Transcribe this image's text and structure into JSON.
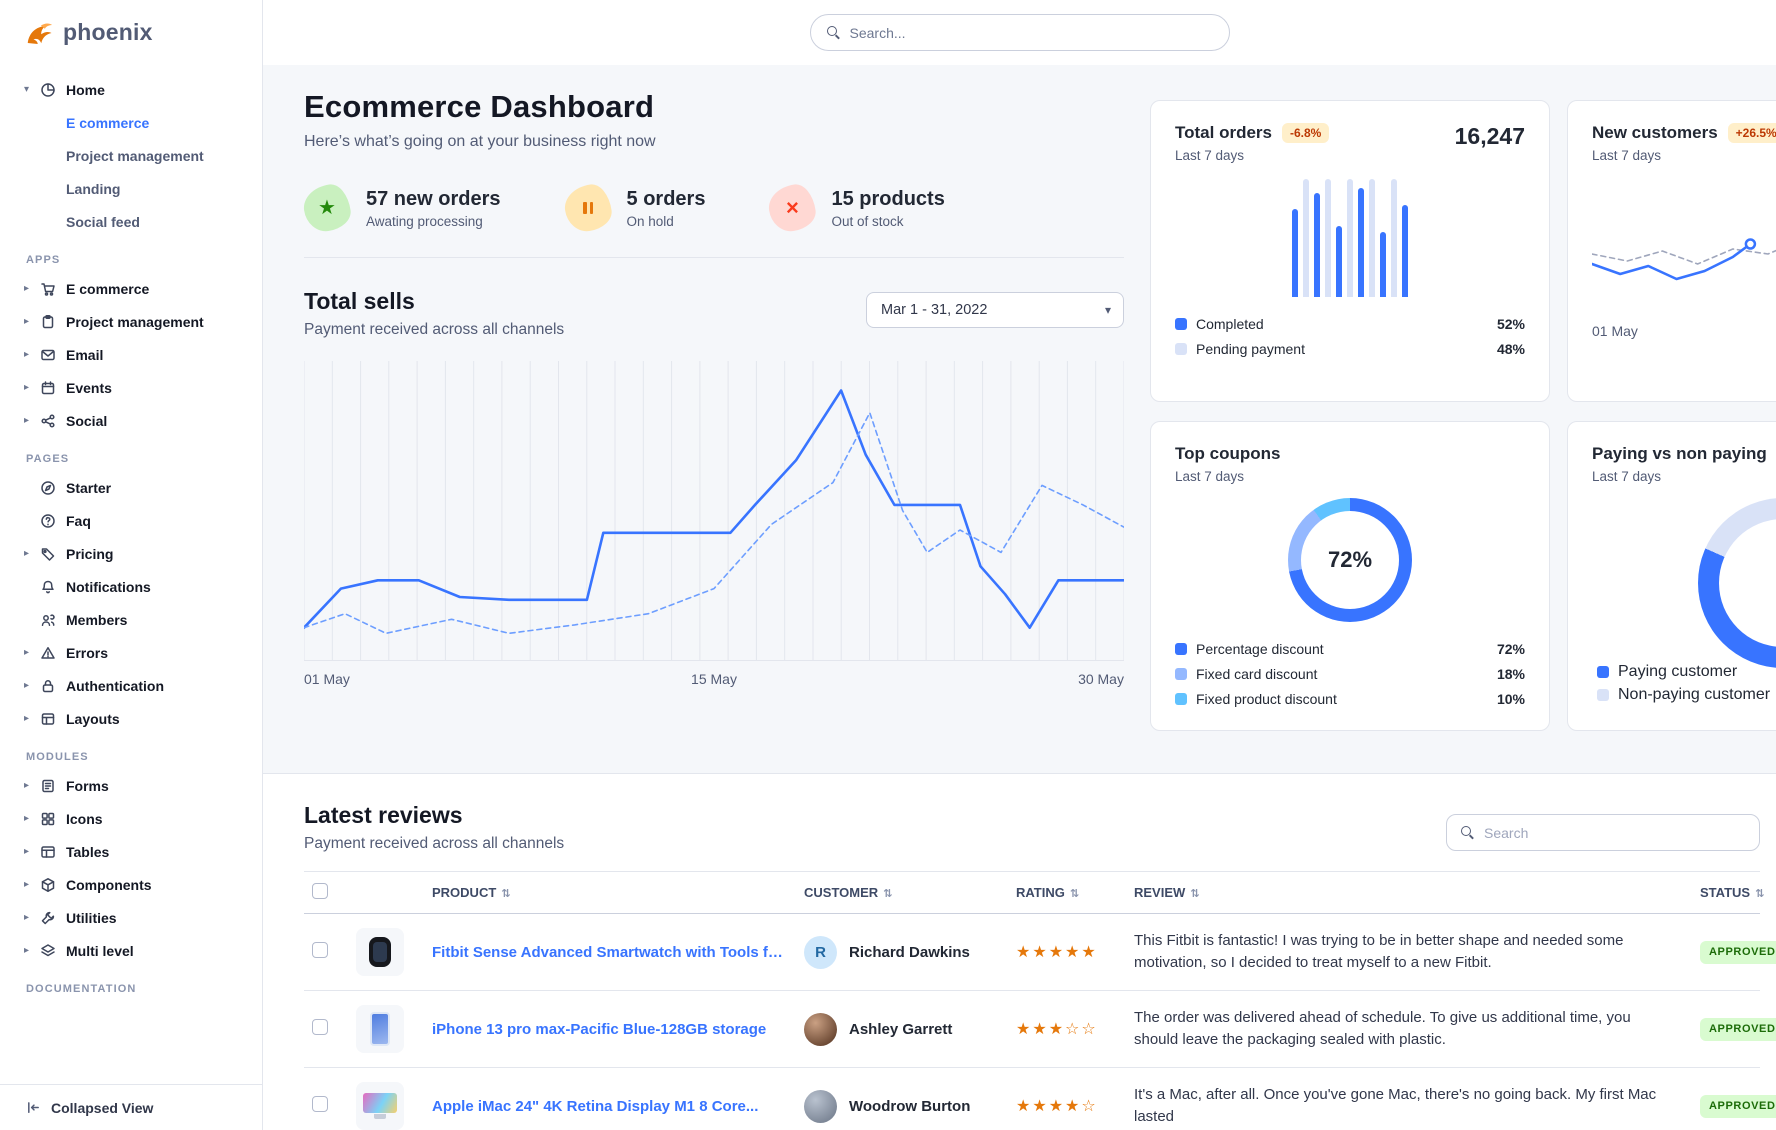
{
  "brand": {
    "name": "phoenix"
  },
  "header": {
    "search_placeholder": "Search..."
  },
  "sidebar": {
    "home": {
      "label": "Home"
    },
    "home_children": [
      {
        "label": "E commerce"
      },
      {
        "label": "Project management"
      },
      {
        "label": "Landing"
      },
      {
        "label": "Social feed"
      }
    ],
    "sections": [
      {
        "label": "APPS",
        "items": [
          {
            "label": "E commerce"
          },
          {
            "label": "Project management"
          },
          {
            "label": "Email"
          },
          {
            "label": "Events"
          },
          {
            "label": "Social"
          }
        ]
      },
      {
        "label": "PAGES",
        "items": [
          {
            "label": "Starter"
          },
          {
            "label": "Faq"
          },
          {
            "label": "Pricing"
          },
          {
            "label": "Notifications"
          },
          {
            "label": "Members"
          },
          {
            "label": "Errors"
          },
          {
            "label": "Authentication"
          },
          {
            "label": "Layouts"
          }
        ]
      },
      {
        "label": "MODULES",
        "items": [
          {
            "label": "Forms"
          },
          {
            "label": "Icons"
          },
          {
            "label": "Tables"
          },
          {
            "label": "Components"
          },
          {
            "label": "Utilities"
          },
          {
            "label": "Multi level"
          }
        ]
      },
      {
        "label": "DOCUMENTATION",
        "items": []
      }
    ],
    "collapsed_view": "Collapsed View"
  },
  "dashboard": {
    "title": "Ecommerce Dashboard",
    "subtitle": "Here’s what’s going on at your business right now",
    "stats": [
      {
        "value": "57 new orders",
        "caption": "Awating processing"
      },
      {
        "value": "5 orders",
        "caption": "On hold"
      },
      {
        "value": "15 products",
        "caption": "Out of stock"
      }
    ],
    "total_sells": {
      "title": "Total sells",
      "subtitle": "Payment received across all channels",
      "date_range": "Mar 1 - 31, 2022"
    }
  },
  "cards": {
    "total_orders": {
      "title": "Total orders",
      "badge": "-6.8%",
      "period": "Last 7 days",
      "value": "16,247"
    },
    "new_customers": {
      "title": "New customers",
      "badge": "+26.5%",
      "period": "Last 7 days"
    },
    "top_coupons": {
      "title": "Top coupons",
      "period": "Last 7 days"
    },
    "paying": {
      "title": "Paying vs non paying",
      "period": "Last 7 days"
    }
  },
  "reviews": {
    "title": "Latest reviews",
    "subtitle": "Payment received across all channels",
    "search_placeholder": "Search",
    "columns": [
      "PRODUCT",
      "CUSTOMER",
      "RATING",
      "REVIEW",
      "STATUS"
    ],
    "rows": [
      {
        "product": "Fitbit Sense Advanced Smartwatch with Tools fo...",
        "customer": "Richard Dawkins",
        "avatar_initial": "R",
        "rating": 5,
        "review": "This Fitbit is fantastic! I was trying to be in better shape and needed some motivation, so I decided to treat myself to a new Fitbit.",
        "status": "APPROVED"
      },
      {
        "product": "iPhone 13 pro max-Pacific Blue-128GB storage",
        "customer": "Ashley Garrett",
        "rating": 3,
        "review": "The order was delivered ahead of schedule. To give us additional time, you should leave the packaging sealed with plastic.",
        "status": "APPROVED"
      },
      {
        "product": "Apple iMac 24\" 4K Retina Display M1 8 Core...",
        "customer": "Woodrow Burton",
        "rating": 4,
        "review": "It's a Mac, after all. Once you've gone Mac, there's no going back. My first Mac lasted",
        "status": "APPROVED"
      }
    ]
  },
  "chart_data": [
    {
      "id": "total_sells",
      "type": "line",
      "title": "Total sells",
      "x_labels": [
        "01 May",
        "15 May",
        "30 May"
      ],
      "ylim": [
        0,
        100
      ],
      "grid": "vertical",
      "series": [
        {
          "name": "current",
          "style": "solid",
          "color": "#3874ff",
          "points": [
            [
              0,
              8
            ],
            [
              0.045,
              22
            ],
            [
              0.09,
              25
            ],
            [
              0.14,
              25
            ],
            [
              0.19,
              19
            ],
            [
              0.25,
              18
            ],
            [
              0.345,
              18
            ],
            [
              0.365,
              42
            ],
            [
              0.45,
              42
            ],
            [
              0.52,
              42
            ],
            [
              0.55,
              52
            ],
            [
              0.6,
              68
            ],
            [
              0.655,
              93
            ],
            [
              0.685,
              70
            ],
            [
              0.72,
              52
            ],
            [
              0.8,
              52
            ],
            [
              0.825,
              30
            ],
            [
              0.855,
              20
            ],
            [
              0.885,
              8
            ],
            [
              0.92,
              25
            ],
            [
              1,
              25
            ]
          ]
        },
        {
          "name": "previous",
          "style": "dashed",
          "color": "#6d9eff",
          "points": [
            [
              0,
              8
            ],
            [
              0.05,
              13
            ],
            [
              0.1,
              6
            ],
            [
              0.18,
              11
            ],
            [
              0.25,
              6
            ],
            [
              0.33,
              9
            ],
            [
              0.42,
              13
            ],
            [
              0.5,
              22
            ],
            [
              0.57,
              45
            ],
            [
              0.645,
              60
            ],
            [
              0.69,
              85
            ],
            [
              0.73,
              50
            ],
            [
              0.76,
              35
            ],
            [
              0.8,
              43
            ],
            [
              0.85,
              35
            ],
            [
              0.9,
              59
            ],
            [
              0.95,
              52
            ],
            [
              1,
              44
            ]
          ]
        }
      ]
    },
    {
      "id": "total_orders",
      "type": "bar",
      "legend": [
        {
          "series": "completed",
          "label": "Completed",
          "value": 52,
          "value_label": "52%",
          "color": "#3874ff"
        },
        {
          "series": "pending",
          "label": "Pending payment",
          "value": 48,
          "value_label": "48%",
          "color": "#d9e2f7"
        }
      ],
      "bars": [
        {
          "series": "completed",
          "value": 75
        },
        {
          "series": "pending",
          "value": 100
        },
        {
          "series": "completed",
          "value": 88
        },
        {
          "series": "pending",
          "value": 100
        },
        {
          "series": "completed",
          "value": 60
        },
        {
          "series": "pending",
          "value": 100
        },
        {
          "series": "completed",
          "value": 92
        },
        {
          "series": "pending",
          "value": 100
        },
        {
          "series": "completed",
          "value": 55
        },
        {
          "series": "pending",
          "value": 100
        },
        {
          "series": "completed",
          "value": 78
        }
      ]
    },
    {
      "id": "new_customers",
      "type": "line",
      "x_labels": [
        "01 May"
      ],
      "series": [
        {
          "name": "previous",
          "style": "dashed",
          "color": "#9fa6bc",
          "points": [
            [
              0,
              45
            ],
            [
              0.1,
              38
            ],
            [
              0.2,
              48
            ],
            [
              0.3,
              35
            ],
            [
              0.4,
              50
            ],
            [
              0.5,
              45
            ],
            [
              0.6,
              60
            ],
            [
              0.7,
              52
            ],
            [
              0.8,
              70
            ],
            [
              0.9,
              80
            ],
            [
              1,
              90
            ]
          ]
        },
        {
          "name": "current",
          "style": "solid",
          "color": "#3874ff",
          "end_dot": true,
          "points": [
            [
              0,
              35
            ],
            [
              0.08,
              25
            ],
            [
              0.16,
              33
            ],
            [
              0.24,
              20
            ],
            [
              0.32,
              28
            ],
            [
              0.4,
              42
            ],
            [
              0.45,
              55
            ]
          ]
        }
      ]
    },
    {
      "id": "top_coupons",
      "type": "pie",
      "donut": true,
      "center_label": "72%",
      "slices": [
        {
          "label": "Percentage discount",
          "value": 72,
          "value_label": "72%",
          "color": "#3874ff"
        },
        {
          "label": "Fixed card discount",
          "value": 18,
          "value_label": "18%",
          "color": "#94b8ff"
        },
        {
          "label": "Fixed product discount",
          "value": 10,
          "value_label": "10%",
          "color": "#60c2ff"
        }
      ]
    },
    {
      "id": "paying_vs_non_paying",
      "type": "pie",
      "donut": true,
      "slices": [
        {
          "label": "Paying customer",
          "value": 40,
          "color": "#3874ff"
        },
        {
          "label": "Non-paying customer",
          "value": 60,
          "color": "#d9e2f7"
        }
      ]
    }
  ],
  "colors": {
    "primary": "#3874ff",
    "warning_badge_bg": "#ffefca",
    "warning_badge_text": "#bc3803",
    "success_badge_bg": "#d9fbd0",
    "success_badge_text": "#1c6c09",
    "star": "#e5780b",
    "grid": "#e3e6ed"
  }
}
